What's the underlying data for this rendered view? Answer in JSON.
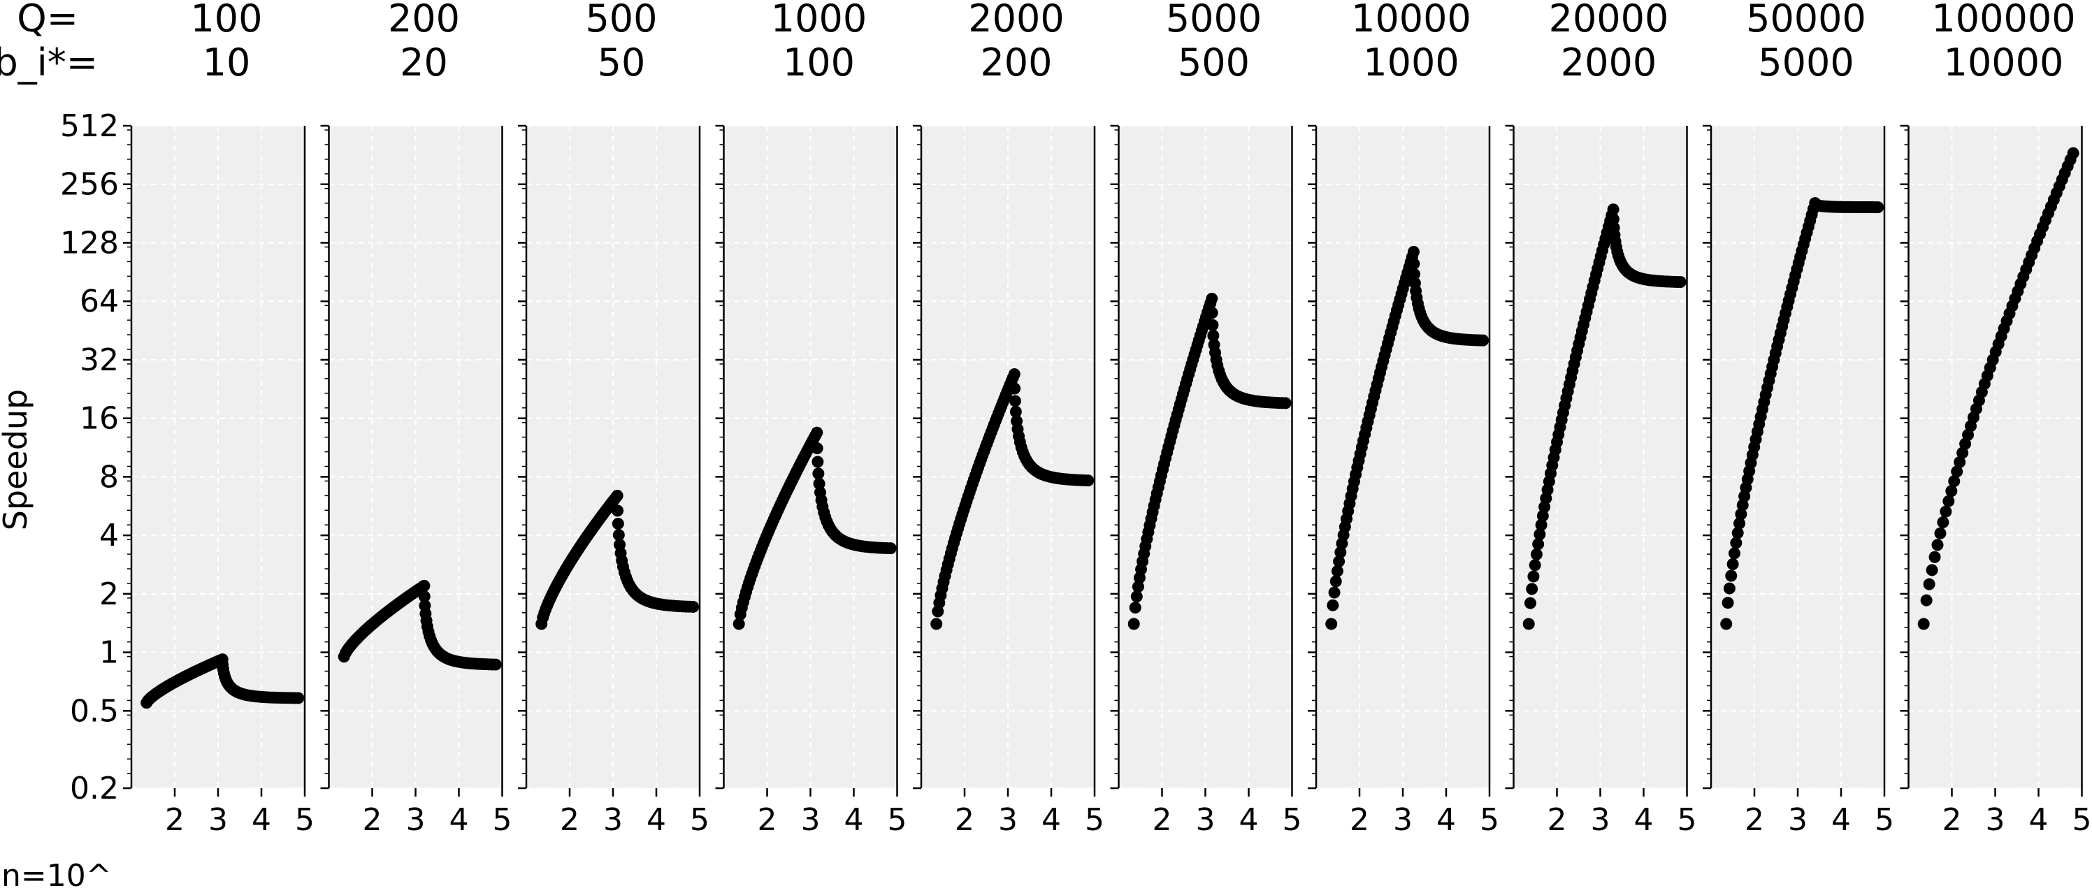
{
  "chart_data": {
    "type": "scatter",
    "ylabel": "Speedup",
    "xlabel": "n=10^",
    "header_labels": {
      "q": "Q=",
      "b": "b_i*="
    },
    "yscale": "log2",
    "ylim": [
      0.2,
      512
    ],
    "yticks": [
      "0.2",
      "0.5",
      "1",
      "2",
      "4",
      "8",
      "16",
      "32",
      "64",
      "128",
      "256",
      "512"
    ],
    "xlim": [
      1.0,
      5.0
    ],
    "xticks": [
      "2",
      "3",
      "4",
      "5"
    ],
    "grid": true,
    "panels": [
      {
        "q": "100",
        "b": "10",
        "peak_x": 3.1,
        "peak_y": 0.92,
        "end_y": 0.58,
        "start_y": 0.55
      },
      {
        "q": "200",
        "b": "20",
        "peak_x": 3.2,
        "peak_y": 2.2,
        "end_y": 0.86,
        "start_y": 0.95
      },
      {
        "q": "500",
        "b": "50",
        "peak_x": 3.1,
        "peak_y": 6.4,
        "end_y": 1.7,
        "start_y": 1.4
      },
      {
        "q": "1000",
        "b": "100",
        "peak_x": 3.15,
        "peak_y": 13.5,
        "end_y": 3.4,
        "start_y": 1.4
      },
      {
        "q": "2000",
        "b": "200",
        "peak_x": 3.15,
        "peak_y": 27,
        "end_y": 7.6,
        "start_y": 1.4
      },
      {
        "q": "5000",
        "b": "500",
        "peak_x": 3.15,
        "peak_y": 66,
        "end_y": 19,
        "start_y": 1.4
      },
      {
        "q": "10000",
        "b": "1000",
        "peak_x": 3.25,
        "peak_y": 115,
        "end_y": 40,
        "start_y": 1.4
      },
      {
        "q": "20000",
        "b": "2000",
        "peak_x": 3.3,
        "peak_y": 190,
        "end_y": 80,
        "start_y": 1.4
      },
      {
        "q": "50000",
        "b": "5000",
        "peak_x": 3.4,
        "peak_y": 205,
        "end_y": 195,
        "start_y": 1.4
      },
      {
        "q": "100000",
        "b": "10000",
        "peak_x": 4.8,
        "peak_y": 370,
        "end_y": 370,
        "start_y": 1.4
      }
    ]
  }
}
